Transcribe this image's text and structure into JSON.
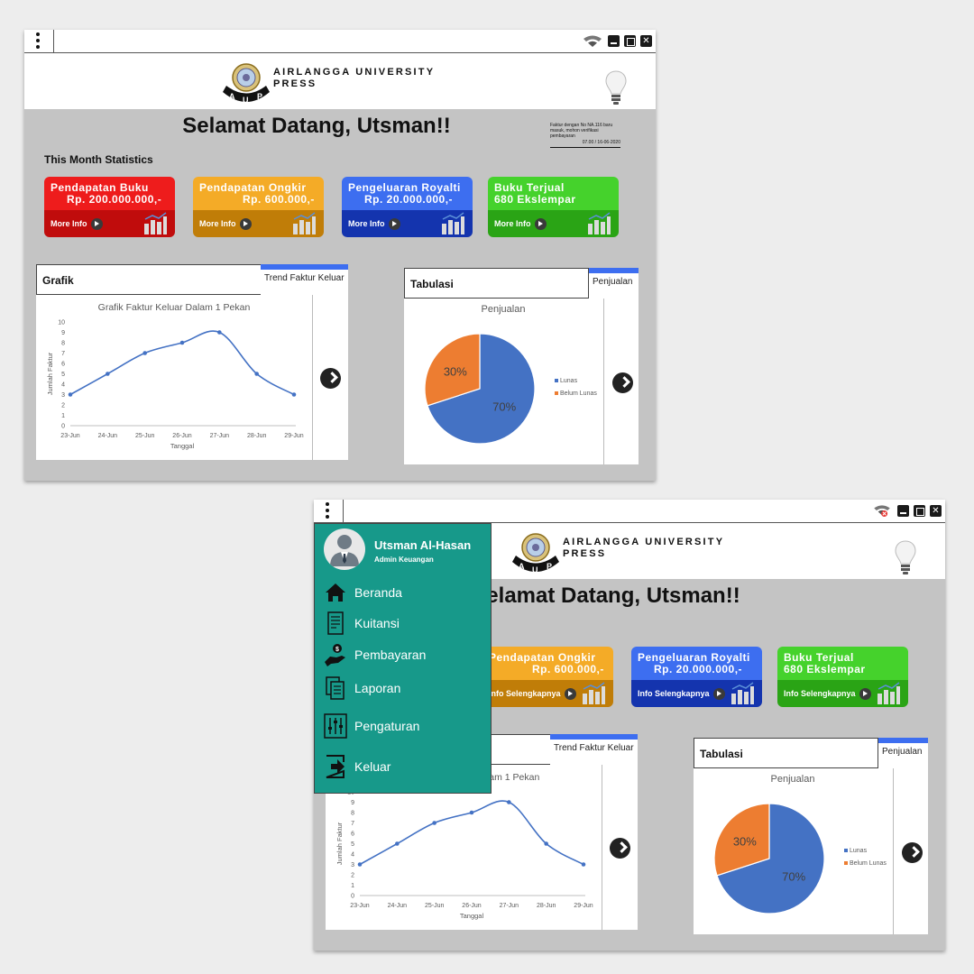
{
  "brand": {
    "name_line1": "AIRLANGGA UNIVERSITY",
    "name_line2": "PRESS",
    "logo_text": "AUP"
  },
  "dashboard": {
    "welcome": "Selamat Datang, Utsman!!",
    "notification": {
      "text": "Faktur dengan No NA.116 baru masuk, mohon verifikasi pembayaran",
      "time": "07.00 / 16-06-2020"
    },
    "stats_title": "This Month Statistics",
    "cards": [
      {
        "title": "Pendapatan Buku",
        "value": "Rp. 200.000.000,-",
        "color_top": "#ee1c1c",
        "color_bottom": "#c00c0c"
      },
      {
        "title": "Pendapatan Ongkir",
        "value": "Rp. 600.000,-",
        "color_top": "#f4ab27",
        "color_bottom": "#c07d08"
      },
      {
        "title": "Pengeluaran Royalti",
        "value": "Rp. 20.000.000,-",
        "color_top": "#3d6ef0",
        "color_bottom": "#1434ae"
      },
      {
        "title": "Buku Terjual",
        "value": "680 Ekslempar",
        "color_top": "#45d22c",
        "color_bottom": "#2aa415"
      }
    ],
    "more_info_label": "More Info",
    "more_info_label_alt": "Info Selengkapnya",
    "grafik": {
      "header": "Grafik",
      "tab": "Trend Faktur Keluar"
    },
    "tabulasi": {
      "header": "Tabulasi",
      "tab": "Penjualan"
    }
  },
  "sidebar": {
    "user_name": "Utsman Al-Hasan",
    "user_role": "Admin Keuangan",
    "items": [
      {
        "label": "Beranda",
        "icon": "home-icon"
      },
      {
        "label": "Kuitansi",
        "icon": "receipt-icon"
      },
      {
        "label": "Pembayaran",
        "icon": "payment-hand-icon"
      },
      {
        "label": "Laporan",
        "icon": "report-icon"
      },
      {
        "label": "Pengaturan",
        "icon": "settings-sliders-icon"
      },
      {
        "label": "Keluar",
        "icon": "logout-icon"
      }
    ]
  },
  "colors": {
    "panel": "#c4c4c4",
    "sidebar": "#17998a",
    "tab_accent": "#3d6ef0",
    "line": "#4472c4",
    "pie_lunas": "#4472c4",
    "pie_belum": "#ed7d31"
  },
  "chart_data": [
    {
      "type": "line",
      "title": "Grafik Faktur Keluar Dalam 1 Pekan",
      "xlabel": "Tanggal",
      "ylabel": "Jumlah Faktur",
      "x": [
        "23-Jun",
        "24-Jun",
        "25-Jun",
        "26-Jun",
        "27-Jun",
        "28-Jun",
        "29-Jun"
      ],
      "values": [
        3,
        5,
        7,
        8,
        9,
        5,
        3
      ],
      "ylim": [
        0,
        10
      ],
      "yticks": [
        0,
        1,
        2,
        3,
        4,
        5,
        6,
        7,
        8,
        9,
        10
      ],
      "grid": false
    },
    {
      "type": "pie",
      "title": "Penjualan",
      "labels": [
        "Lunas",
        "Belum Lunas"
      ],
      "values": [
        70,
        30
      ],
      "value_labels": [
        "70%",
        "30%"
      ],
      "legend": "right"
    }
  ]
}
